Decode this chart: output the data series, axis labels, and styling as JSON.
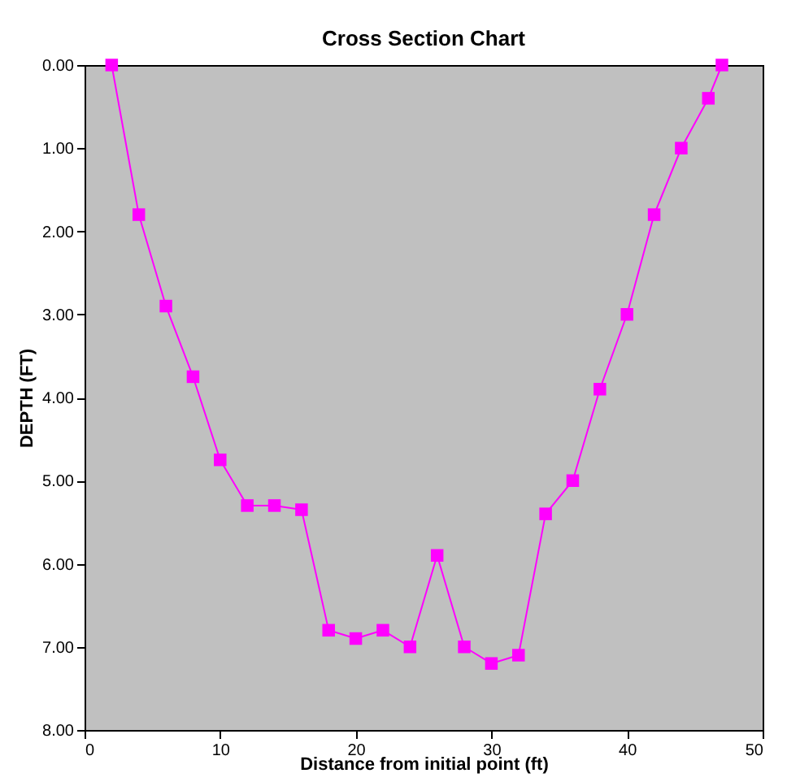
{
  "chart_data": {
    "type": "line",
    "title": "Cross Section Chart",
    "xlabel": "Distance from initial point (ft)",
    "ylabel": "DEPTH (FT)",
    "x": [
      2,
      4,
      6,
      8,
      10,
      12,
      14,
      16,
      18,
      20,
      22,
      24,
      26,
      28,
      30,
      32,
      34,
      36,
      38,
      40,
      42,
      44,
      46,
      47
    ],
    "series": [
      {
        "color": "#ff00ff",
        "values": [
          0,
          1.8,
          2.9,
          3.75,
          4.75,
          5.3,
          5.3,
          5.35,
          6.8,
          6.9,
          6.8,
          7.0,
          5.9,
          7.0,
          7.2,
          7.1,
          5.4,
          5.0,
          3.9,
          3.0,
          1.8,
          1.0,
          0.4,
          0
        ]
      }
    ],
    "xlim": [
      0,
      50
    ],
    "xticks": [
      0,
      10,
      20,
      30,
      40,
      50
    ],
    "ylim": [
      8,
      0
    ],
    "yticks": [
      {
        "value": 0,
        "label": "0.00"
      },
      {
        "value": 1,
        "label": "1.00"
      },
      {
        "value": 2,
        "label": "2.00"
      },
      {
        "value": 3,
        "label": "3.00"
      },
      {
        "value": 4,
        "label": "4.00"
      },
      {
        "value": 5,
        "label": "5.00"
      },
      {
        "value": 6,
        "label": "6.00"
      },
      {
        "value": 7,
        "label": "7.00"
      },
      {
        "value": 8,
        "label": "8.00"
      }
    ],
    "grid": false,
    "marker": "square",
    "line_style": "solid"
  }
}
